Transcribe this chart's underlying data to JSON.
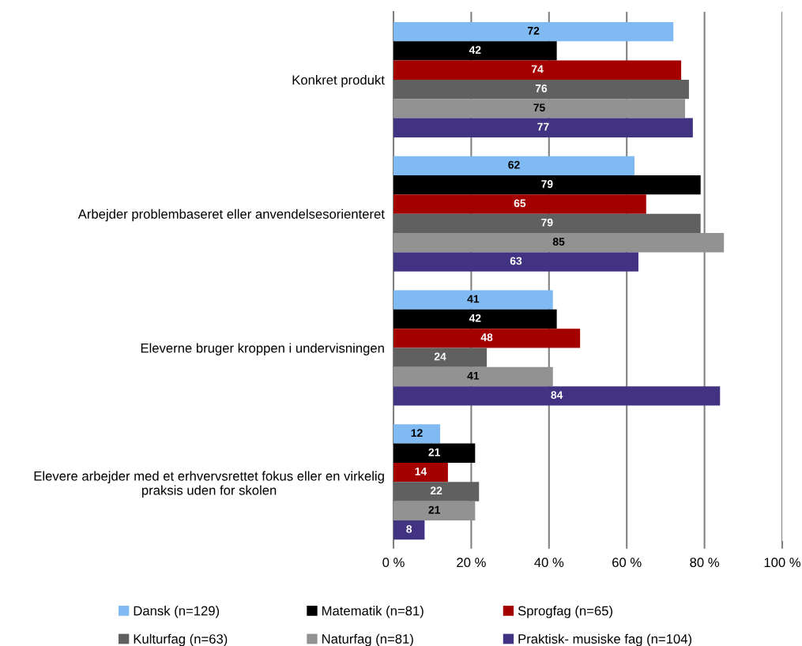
{
  "chart_data": {
    "type": "bar",
    "orientation": "horizontal",
    "categories": [
      "Konkret produkt",
      "Arbejder problembaseret eller anvendelsesorienteret",
      "Eleverne bruger kroppen i undervisningen",
      "Elevere arbejder med et erhvervsrettet fokus eller en virkelig\npraksis uden for skolen"
    ],
    "series": [
      {
        "name": "Dansk (n=129)",
        "color": "#7fbaf3",
        "values": [
          72,
          62,
          41,
          12
        ]
      },
      {
        "name": "Matematik (n=81)",
        "color": "#000000",
        "values": [
          42,
          79,
          42,
          21
        ]
      },
      {
        "name": "Sprogfag (n=65)",
        "color": "#a50000",
        "values": [
          74,
          65,
          48,
          14
        ]
      },
      {
        "name": "Kulturfag (n=63)",
        "color": "#606060",
        "values": [
          76,
          79,
          24,
          22
        ]
      },
      {
        "name": "Naturfag (n=81)",
        "color": "#929292",
        "values": [
          75,
          85,
          41,
          21
        ]
      },
      {
        "name": "Praktisk- musiske fag (n=104)",
        "color": "#413282",
        "values": [
          77,
          63,
          84,
          8
        ]
      }
    ],
    "xlim": [
      0,
      100
    ],
    "xticks": [
      {
        "value": 0,
        "label": "0 %"
      },
      {
        "value": 20,
        "label": "20 %"
      },
      {
        "value": 40,
        "label": "40 %"
      },
      {
        "value": 60,
        "label": "60 %"
      },
      {
        "value": 80,
        "label": "80 %"
      },
      {
        "value": 100,
        "label": "100 %"
      }
    ],
    "grid": "x",
    "data_labels": true,
    "legend": "bottom"
  }
}
